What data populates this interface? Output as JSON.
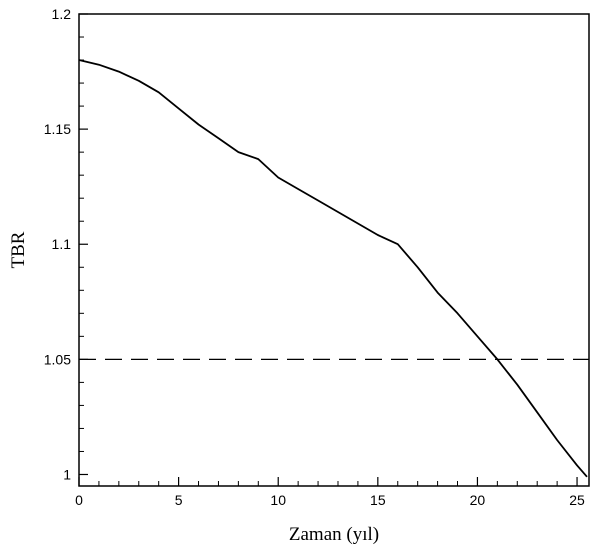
{
  "chart_data": {
    "type": "line",
    "xlabel": "Zaman (yıl)",
    "ylabel": "TBR",
    "xlim": [
      0,
      25.6
    ],
    "ylim": [
      0.995,
      1.2
    ],
    "x_ticks": [
      {
        "value": 0,
        "label": "0"
      },
      {
        "value": 5,
        "label": "5"
      },
      {
        "value": 10,
        "label": "10"
      },
      {
        "value": 15,
        "label": "15"
      },
      {
        "value": 20,
        "label": "20"
      },
      {
        "value": 25,
        "label": "25"
      }
    ],
    "y_ticks": [
      {
        "value": 1.0,
        "label": "1"
      },
      {
        "value": 1.05,
        "label": "1.05"
      },
      {
        "value": 1.1,
        "label": "1.1"
      },
      {
        "value": 1.15,
        "label": "1.15"
      },
      {
        "value": 1.2,
        "label": "1.2"
      }
    ],
    "grid": false,
    "series": [
      {
        "style": "solid",
        "color": "#000000",
        "x": [
          0,
          1,
          2,
          3,
          4,
          5,
          6,
          7,
          8,
          9,
          10,
          11,
          12,
          13,
          14,
          15,
          16,
          17,
          18,
          19,
          20,
          21,
          22,
          23,
          24,
          25,
          25.5
        ],
        "y": [
          1.18,
          1.178,
          1.175,
          1.171,
          1.166,
          1.159,
          1.152,
          1.146,
          1.14,
          1.137,
          1.129,
          1.124,
          1.119,
          1.114,
          1.109,
          1.104,
          1.1,
          1.09,
          1.079,
          1.07,
          1.06,
          1.05,
          1.039,
          1.027,
          1.015,
          1.004,
          0.999
        ]
      },
      {
        "style": "dashed",
        "color": "#000000",
        "x": [
          0,
          25.6
        ],
        "y": [
          1.05,
          1.05
        ]
      }
    ]
  }
}
